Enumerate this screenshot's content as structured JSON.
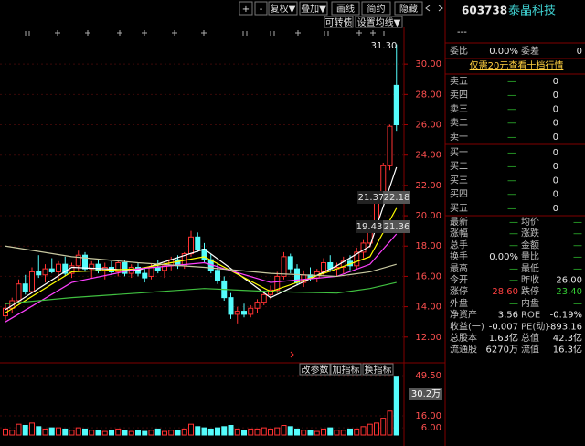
{
  "toolbar": [
    "+",
    "-",
    "复权▼",
    "叠加▼",
    "画线",
    "简约",
    "隐藏"
  ],
  "toolbar2": [
    "可转债",
    "设置均线▼"
  ],
  "volume_buttons": [
    "改参数",
    "加指标",
    "换指标"
  ],
  "chart_data": {
    "type": "candlestick",
    "ylim": [
      10.36,
      32.42
    ],
    "yticks": [
      {
        "value": 30,
        "label": "30.00"
      },
      {
        "value": 28,
        "label": "28.00"
      },
      {
        "value": 26,
        "label": "26.00"
      },
      {
        "value": 24,
        "label": "24.00"
      },
      {
        "value": 22,
        "label": "22.00"
      },
      {
        "value": 20,
        "label": "20.00"
      },
      {
        "value": 18,
        "label": "18.00"
      },
      {
        "value": 16,
        "label": "16.00"
      },
      {
        "value": 14,
        "label": "14.00"
      },
      {
        "value": 12,
        "label": "12.00"
      }
    ],
    "grid": true,
    "up_color": "#ff3232",
    "down_color": "#54fcfc",
    "candles": [
      [
        13.4,
        14.2,
        13.1,
        13.9
      ],
      [
        13.9,
        14.6,
        13.6,
        14.4
      ],
      [
        14.4,
        15.8,
        14.2,
        15.5
      ],
      [
        15.5,
        16.1,
        14.8,
        15.0
      ],
      [
        15.0,
        16.6,
        14.9,
        16.3
      ],
      [
        16.3,
        17.4,
        15.9,
        16.1
      ],
      [
        16.1,
        16.8,
        15.6,
        16.5
      ],
      [
        16.5,
        17.2,
        16.2,
        16.3
      ],
      [
        16.3,
        17.0,
        15.8,
        16.8
      ],
      [
        16.8,
        17.3,
        16.0,
        16.2
      ],
      [
        16.2,
        16.9,
        15.9,
        16.7
      ],
      [
        16.7,
        17.7,
        16.4,
        17.4
      ],
      [
        17.4,
        17.6,
        16.3,
        16.5
      ],
      [
        16.5,
        17.0,
        15.9,
        16.8
      ],
      [
        16.8,
        17.1,
        16.2,
        16.4
      ],
      [
        16.4,
        16.9,
        15.8,
        16.6
      ],
      [
        16.6,
        17.0,
        16.1,
        16.3
      ],
      [
        16.3,
        17.0,
        16.0,
        16.9
      ],
      [
        16.9,
        17.1,
        16.0,
        16.2
      ],
      [
        16.2,
        16.8,
        15.9,
        16.6
      ],
      [
        16.6,
        16.9,
        16.0,
        16.2
      ],
      [
        16.2,
        16.6,
        15.6,
        15.9
      ],
      [
        16.0,
        16.8,
        15.8,
        16.6
      ],
      [
        16.6,
        17.1,
        16.2,
        16.4
      ],
      [
        16.4,
        16.9,
        15.9,
        16.7
      ],
      [
        16.7,
        17.3,
        16.4,
        17.1
      ],
      [
        17.1,
        17.4,
        16.5,
        16.7
      ],
      [
        16.7,
        17.6,
        16.5,
        17.5
      ],
      [
        17.5,
        19.0,
        17.3,
        18.6
      ],
      [
        18.6,
        18.9,
        17.6,
        17.8
      ],
      [
        17.8,
        18.2,
        16.9,
        17.1
      ],
      [
        17.1,
        17.5,
        16.2,
        16.4
      ],
      [
        16.4,
        16.8,
        15.5,
        15.7
      ],
      [
        15.7,
        16.0,
        14.4,
        14.6
      ],
      [
        14.6,
        14.9,
        13.2,
        13.5
      ],
      [
        13.5,
        14.0,
        12.9,
        13.7
      ],
      [
        13.7,
        14.2,
        13.3,
        13.5
      ],
      [
        13.5,
        14.1,
        13.3,
        13.9
      ],
      [
        13.9,
        14.5,
        13.6,
        14.3
      ],
      [
        14.3,
        15.0,
        14.1,
        14.8
      ],
      [
        14.8,
        15.4,
        14.5,
        15.1
      ],
      [
        15.1,
        16.3,
        14.9,
        16.0
      ],
      [
        16.0,
        17.6,
        15.8,
        17.3
      ],
      [
        17.3,
        17.5,
        16.2,
        16.5
      ],
      [
        16.5,
        16.8,
        15.4,
        15.6
      ],
      [
        15.6,
        16.4,
        15.3,
        16.1
      ],
      [
        16.1,
        16.6,
        15.7,
        15.9
      ],
      [
        15.9,
        16.5,
        15.6,
        16.3
      ],
      [
        16.3,
        17.2,
        16.0,
        16.9
      ],
      [
        16.9,
        17.4,
        16.3,
        16.5
      ],
      [
        16.5,
        16.9,
        16.0,
        16.6
      ],
      [
        16.6,
        17.3,
        16.2,
        17.0
      ],
      [
        17.0,
        17.4,
        16.4,
        16.7
      ],
      [
        16.7,
        17.9,
        16.5,
        17.6
      ],
      [
        17.6,
        18.4,
        17.2,
        18.2
      ],
      [
        18.2,
        19.6,
        17.9,
        19.4
      ],
      [
        19.4,
        21.4,
        19.4,
        21.4
      ],
      [
        21.4,
        23.5,
        21.2,
        23.3
      ],
      [
        23.3,
        26.0,
        23.0,
        25.9
      ],
      [
        28.6,
        31.3,
        25.6,
        26.0
      ]
    ],
    "moving_averages": [
      {
        "color": "#ffffff",
        "x": [
          0,
          10,
          20,
          30,
          40,
          50,
          55,
          59
        ],
        "values": [
          13.8,
          16.6,
          16.4,
          17.8,
          14.6,
          16.7,
          18.0,
          23.2
        ]
      },
      {
        "color": "#ffff00",
        "x": [
          0,
          10,
          20,
          30,
          40,
          50,
          55,
          59
        ],
        "values": [
          13.6,
          16.3,
          16.5,
          17.3,
          15.0,
          16.5,
          17.3,
          20.5
        ]
      },
      {
        "color": "#ff40ff",
        "x": [
          0,
          10,
          20,
          30,
          40,
          50,
          55,
          59
        ],
        "values": [
          13.0,
          15.6,
          16.5,
          16.9,
          15.6,
          16.0,
          16.8,
          18.8
        ]
      },
      {
        "color": "#c8c8a0",
        "x": [
          0,
          10,
          20,
          30,
          40,
          50,
          55,
          59
        ],
        "values": [
          18.0,
          17.3,
          16.9,
          16.6,
          16.2,
          16.0,
          16.3,
          16.8
        ]
      },
      {
        "color": "#40c040",
        "x": [
          0,
          10,
          20,
          30,
          40,
          50,
          55,
          59
        ],
        "values": [
          14.2,
          14.6,
          14.9,
          15.2,
          15.0,
          14.9,
          15.2,
          15.6
        ]
      }
    ],
    "annotations": [
      "31.30",
      "21.37",
      "22.18",
      "19.43",
      "21.36"
    ],
    "volume": [
      5,
      4,
      9,
      8,
      10,
      7,
      5,
      6,
      6,
      5,
      4,
      6,
      5,
      4,
      4,
      3,
      4,
      5,
      4,
      3,
      4,
      3,
      4,
      5,
      3,
      4,
      4,
      5,
      9,
      7,
      6,
      5,
      6,
      7,
      8,
      5,
      4,
      5,
      5,
      6,
      5,
      6,
      8,
      7,
      5,
      4,
      4,
      3,
      5,
      6,
      4,
      4,
      5,
      5,
      7,
      9,
      10,
      14,
      20,
      49
    ],
    "volume_ylim": [
      0,
      56.4
    ],
    "volume_yticks": [
      {
        "value": 49.5,
        "label": "49.50"
      },
      {
        "value": 16,
        "label": "16.00"
      },
      {
        "value": 6,
        "label": "6.00"
      }
    ],
    "volume_cursor_label": "30.2万"
  },
  "quote": {
    "code": "603738",
    "name": "泰晶科技",
    "status": "---",
    "commission": [
      "委比",
      "0.00%",
      "委差",
      "0"
    ],
    "promo": "仅需20元查看十档行情",
    "asks": [
      [
        "卖五",
        "—",
        "0"
      ],
      [
        "卖四",
        "—",
        "0"
      ],
      [
        "卖三",
        "—",
        "0"
      ],
      [
        "卖二",
        "—",
        "0"
      ],
      [
        "卖一",
        "—",
        "0"
      ]
    ],
    "bids": [
      [
        "买一",
        "—",
        "0"
      ],
      [
        "买二",
        "—",
        "0"
      ],
      [
        "买三",
        "—",
        "0"
      ],
      [
        "买四",
        "—",
        "0"
      ],
      [
        "买五",
        "—",
        "0"
      ]
    ],
    "stats": [
      [
        "最新",
        "—",
        "均价",
        "—"
      ],
      [
        "涨幅",
        "—",
        "涨跌",
        "—"
      ],
      [
        "总手",
        "—",
        "金额",
        "—"
      ],
      [
        "换手",
        "0.00%",
        "量比",
        "—"
      ],
      [
        "最高",
        "—",
        "最低",
        "—"
      ],
      [
        "今开",
        "—",
        "昨收",
        "26.00"
      ],
      [
        "涨停",
        "28.60",
        "跌停",
        "23.40"
      ],
      [
        "外盘",
        "—",
        "内盘",
        "—"
      ],
      [
        "净资产",
        "3.56",
        "ROE",
        "-0.19%"
      ],
      [
        "收益(一)",
        "-0.007",
        "PE(动)",
        "-893.16"
      ],
      [
        "总股本",
        "1.63亿",
        "总值",
        "42.3亿"
      ],
      [
        "流通股",
        "6270万",
        "流值",
        "16.3亿"
      ]
    ],
    "stats_colors": [
      [
        "#3c3",
        "#3c3"
      ],
      [
        "#3c3",
        "#3c3"
      ],
      [
        "#3c3",
        "#3c3"
      ],
      [
        "#e8e8e8",
        "#3c3"
      ],
      [
        "#3c3",
        "#3c3"
      ],
      [
        "#3c3",
        "#e8e8e8"
      ],
      [
        "#ff4040",
        "#3c3"
      ],
      [
        "#3c3",
        "#3c3"
      ],
      [
        "#e8e8e8",
        "#e8e8e8"
      ],
      [
        "#e8e8e8",
        "#e8e8e8"
      ],
      [
        "#e8e8e8",
        "#e8e8e8"
      ],
      [
        "#e8e8e8",
        "#e8e8e8"
      ]
    ]
  }
}
